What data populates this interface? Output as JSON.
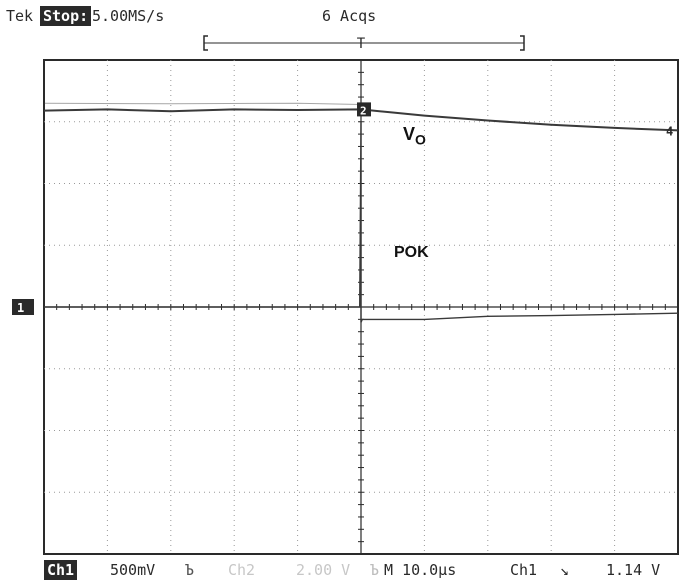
{
  "header": {
    "brand": "Tek",
    "state": "Stop:",
    "sample_rate": "5.00MS/s",
    "acquisitions": "6 Acqs"
  },
  "labels": {
    "vo_main": "V",
    "vo_sub": "O",
    "pok": "POK"
  },
  "markers": {
    "trigger_top": "T",
    "ch1_ground": "1",
    "ch2_ground": "2",
    "ch4_indicator": "4"
  },
  "footer": {
    "ch1": "Ch1",
    "ch1_scale": "500mV",
    "ch1_coupling": "Ъ",
    "ch2": "Ch2",
    "ch2_scale": "2.00 V",
    "ch2_coupling": "Ъ",
    "timebase": "M 10.0µs",
    "trigger_source": "Ch1",
    "trigger_slope": "↘",
    "trigger_level": "1.14 V"
  },
  "colors": {
    "trace": "#3a3a3a",
    "grid": "#9a9a9a",
    "frame": "#2a2a2a",
    "background": "#ffffff"
  },
  "chart_data": {
    "type": "line",
    "grid": {
      "divisions_x": 10,
      "divisions_y": 8
    },
    "x_range_div": [
      -5,
      5
    ],
    "y_range_div": [
      -4,
      4
    ],
    "series": [
      {
        "name": "",
        "x_div": [
          -5,
          -4,
          -3,
          -2,
          -1,
          0,
          0.5,
          1,
          2,
          3,
          4,
          5
        ],
        "y_div": [
          3.18,
          3.2,
          3.17,
          3.2,
          3.19,
          3.2,
          3.15,
          3.1,
          3.02,
          2.95,
          2.9,
          2.86
        ]
      },
      {
        "name": "",
        "x_div": [
          -5,
          -4,
          -3,
          -2,
          -1,
          -0.02,
          0.0,
          0.0,
          0.02,
          1,
          2,
          3,
          4,
          5
        ],
        "y_div": [
          0,
          0,
          0,
          0,
          0,
          0,
          3.0,
          -0.25,
          -0.2,
          -0.2,
          -0.15,
          -0.14,
          -0.12,
          -0.1
        ]
      },
      {
        "name": "",
        "x_div": [
          -5,
          -3,
          -1,
          0
        ],
        "y_div": [
          3.3,
          3.29,
          3.3,
          3.28
        ]
      }
    ]
  }
}
